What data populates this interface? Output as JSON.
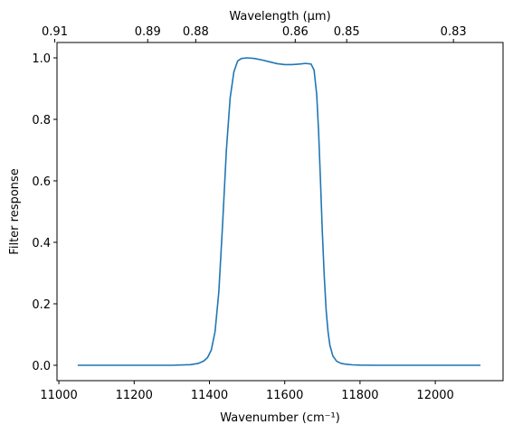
{
  "chart_data": {
    "type": "line",
    "xlabel": "Wavenumber (cm⁻¹)",
    "ylabel": "Filter response",
    "top_xlabel": "Wavelength (μm)",
    "xlim": [
      10995,
      12180
    ],
    "ylim": [
      -0.05,
      1.05
    ],
    "x_ticks": [
      11000,
      11200,
      11400,
      11600,
      11800,
      12000
    ],
    "x_tick_labels": [
      "11000",
      "11200",
      "11400",
      "11600",
      "11800",
      "12000"
    ],
    "y_ticks": [
      0.0,
      0.2,
      0.4,
      0.6,
      0.8,
      1.0
    ],
    "y_tick_labels": [
      "0.0",
      "0.2",
      "0.4",
      "0.6",
      "0.8",
      "1.0"
    ],
    "top_tick_labels": [
      "0.91",
      "0.89",
      "0.88",
      "0.86",
      "0.85",
      "0.83"
    ],
    "grid": false,
    "legend": "none",
    "series": [
      {
        "color": "#1f77b4",
        "x": [
          11050,
          11200,
          11300,
          11350,
          11370,
          11385,
          11395,
          11405,
          11415,
          11425,
          11435,
          11445,
          11455,
          11465,
          11475,
          11485,
          11500,
          11520,
          11540,
          11560,
          11580,
          11600,
          11620,
          11640,
          11655,
          11670,
          11678,
          11685,
          11690,
          11695,
          11700,
          11705,
          11710,
          11715,
          11720,
          11728,
          11738,
          11750,
          11765,
          11780,
          11800,
          11850,
          11950,
          12050,
          12120
        ],
        "y": [
          0.0,
          0.0,
          0.0,
          0.002,
          0.006,
          0.014,
          0.025,
          0.05,
          0.11,
          0.24,
          0.46,
          0.7,
          0.87,
          0.955,
          0.99,
          0.998,
          1.0,
          0.998,
          0.993,
          0.987,
          0.981,
          0.978,
          0.978,
          0.98,
          0.982,
          0.98,
          0.96,
          0.88,
          0.76,
          0.6,
          0.43,
          0.29,
          0.18,
          0.11,
          0.065,
          0.03,
          0.013,
          0.006,
          0.003,
          0.0015,
          0.0005,
          0.0,
          0.0,
          0.0,
          0.0
        ]
      }
    ]
  }
}
